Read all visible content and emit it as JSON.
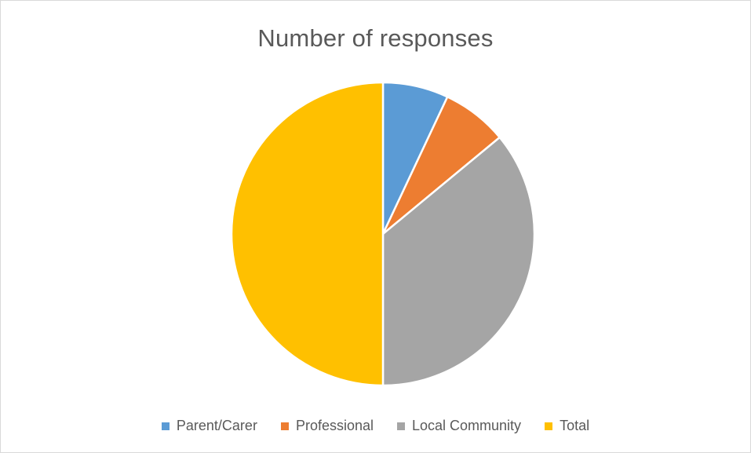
{
  "chart_data": {
    "type": "pie",
    "title": "Number of responses",
    "categories": [
      "Parent/Carer",
      "Professional",
      "Local Community",
      "Total"
    ],
    "values": [
      7,
      7,
      36,
      50
    ],
    "colors": [
      "#5b9bd5",
      "#ed7d31",
      "#a5a5a5",
      "#ffc000"
    ],
    "start_angle_deg": 0,
    "direction": "clockwise",
    "legend_position": "bottom",
    "slice_border_color": "#ffffff"
  }
}
